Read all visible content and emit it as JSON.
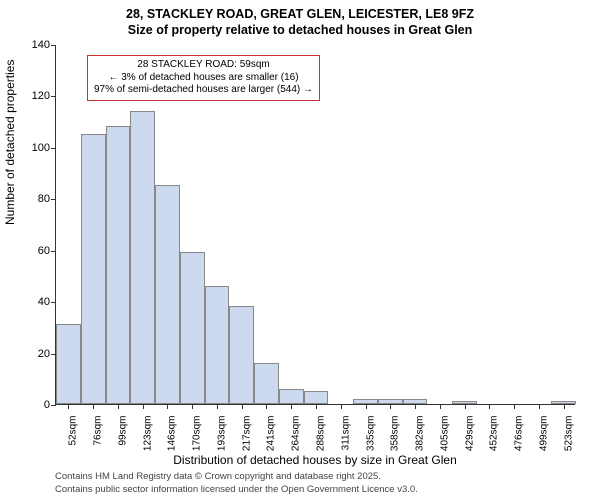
{
  "title": {
    "line1": "28, STACKLEY ROAD, GREAT GLEN, LEICESTER, LE8 9FZ",
    "line2": "Size of property relative to detached houses in Great Glen",
    "fontsize": 12.5,
    "weight": "bold"
  },
  "chart": {
    "type": "histogram",
    "background_color": "#ffffff",
    "bar_fill": "#cdd9ef",
    "bar_border": "#888888",
    "axis_color": "#333333",
    "ylabel": "Number of detached properties",
    "xlabel": "Distribution of detached houses by size in Great Glen",
    "label_fontsize": 12,
    "tick_fontsize": 11,
    "xtick_fontsize": 10,
    "ylim": [
      0,
      140
    ],
    "ytick_step": 20,
    "yticks": [
      0,
      20,
      40,
      60,
      80,
      100,
      120,
      140
    ],
    "xticks": [
      "52sqm",
      "76sqm",
      "99sqm",
      "123sqm",
      "146sqm",
      "170sqm",
      "193sqm",
      "217sqm",
      "241sqm",
      "264sqm",
      "288sqm",
      "311sqm",
      "335sqm",
      "358sqm",
      "382sqm",
      "405sqm",
      "429sqm",
      "452sqm",
      "476sqm",
      "499sqm",
      "523sqm"
    ],
    "subject_bin_index": 0,
    "bars": [
      31,
      105,
      108,
      114,
      85,
      59,
      46,
      38,
      16,
      6,
      5,
      0,
      2,
      2,
      2,
      0,
      1,
      0,
      0,
      0,
      1
    ]
  },
  "info_box": {
    "border_color": "#cc3333",
    "background_color": "#ffffff",
    "fontsize": 10,
    "lines": {
      "l1": "28 STACKLEY ROAD: 59sqm",
      "l2": "← 3% of detached houses are smaller (16)",
      "l3": "97% of semi-detached houses are larger (544) →"
    }
  },
  "footer": {
    "line1": "Contains HM Land Registry data © Crown copyright and database right 2025.",
    "line2": "Contains public sector information licensed under the Open Government Licence v3.0.",
    "fontsize": 9.5,
    "color": "#444444"
  }
}
